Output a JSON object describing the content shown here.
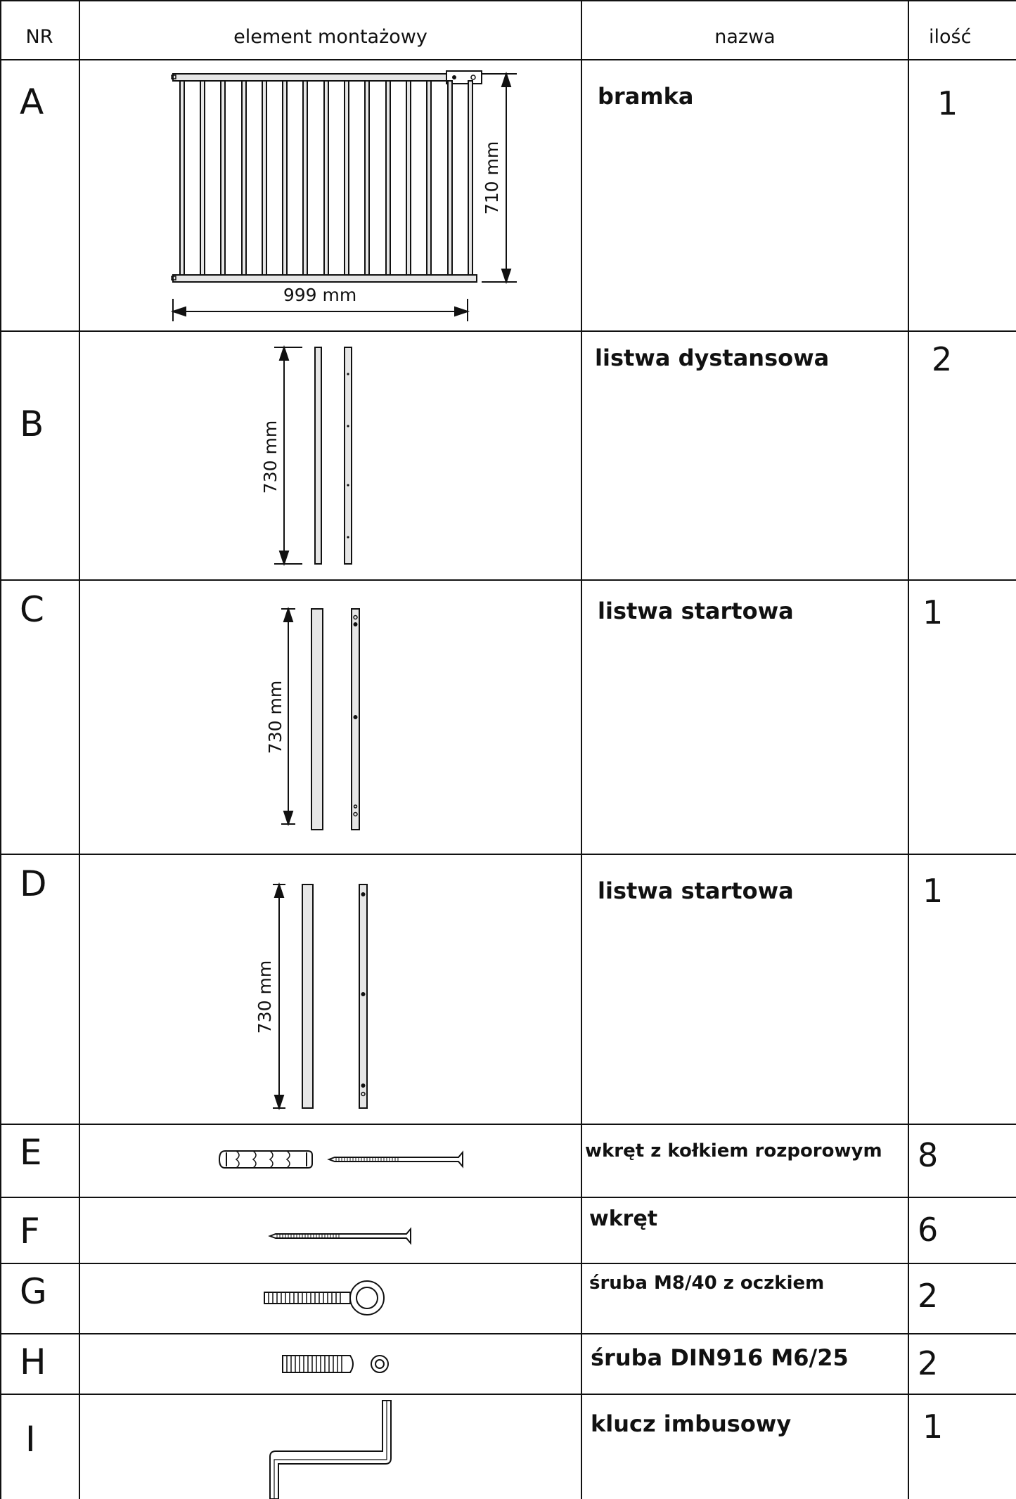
{
  "header": {
    "nr": "NR",
    "element": "element montażowy",
    "name": "nazwa",
    "qty": "ilość"
  },
  "rows": [
    {
      "nr": "A",
      "name": "bramka",
      "qty": "1",
      "icon": "gate-drawing",
      "dims": [
        "710 mm",
        "999 mm"
      ]
    },
    {
      "nr": "B",
      "name": "listwa dystansowa",
      "qty": "2",
      "icon": "spacer-bar-drawing",
      "dims": [
        "730 mm"
      ]
    },
    {
      "nr": "C",
      "name": "listwa startowa",
      "qty": "1",
      "icon": "starter-bar-drawing",
      "dims": [
        "730 mm"
      ]
    },
    {
      "nr": "D",
      "name": "listwa startowa",
      "qty": "1",
      "icon": "starter-bar-drawing",
      "dims": [
        "730 mm"
      ]
    },
    {
      "nr": "E",
      "name": "wkręt z kołkiem rozporowym",
      "qty": "8",
      "icon": "screw-with-anchor-drawing",
      "dims": []
    },
    {
      "nr": "F",
      "name": "wkręt",
      "qty": "6",
      "icon": "screw-drawing",
      "dims": []
    },
    {
      "nr": "G",
      "name": "śruba M8/40 z oczkiem",
      "qty": "2",
      "icon": "eye-bolt-drawing",
      "dims": []
    },
    {
      "nr": "H",
      "name": "śruba DIN916 M6/25",
      "qty": "2",
      "icon": "set-screw-drawing",
      "dims": []
    },
    {
      "nr": "I",
      "name": "klucz imbusowy",
      "qty": "1",
      "icon": "hex-key-drawing",
      "dims": []
    }
  ]
}
